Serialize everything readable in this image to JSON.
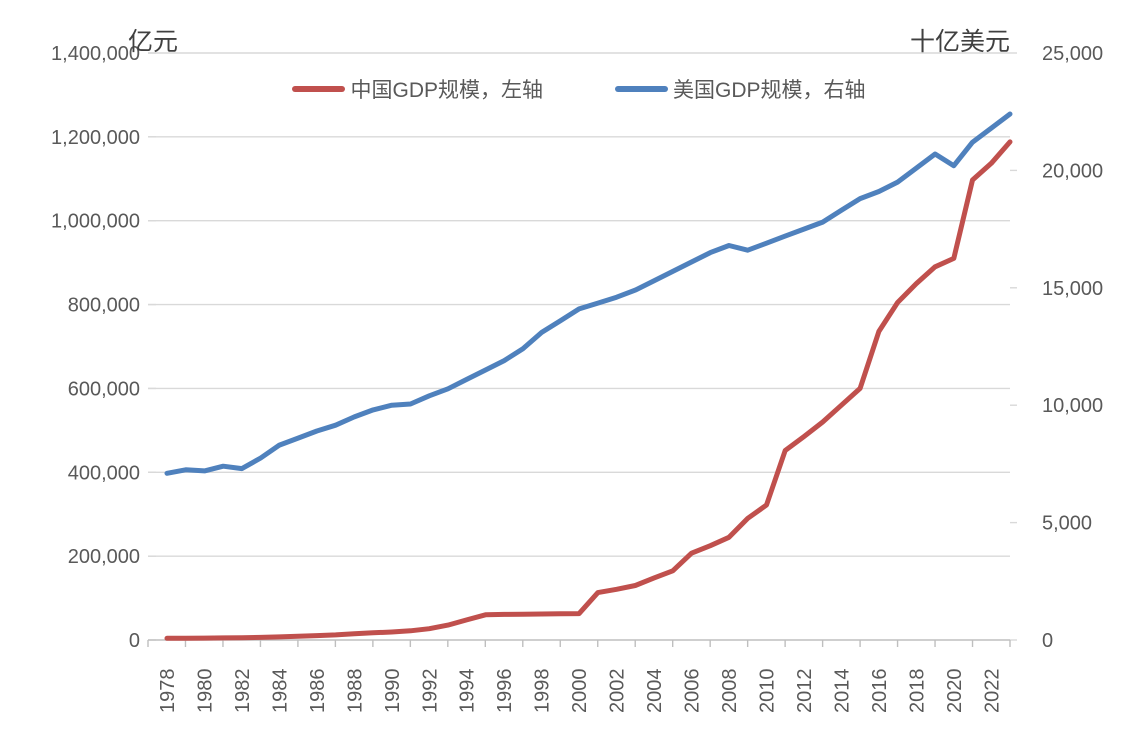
{
  "chart_data": {
    "type": "line",
    "title": "",
    "grid": true,
    "legend_position": "top",
    "colors": {
      "china_line": "#C0504D",
      "us_line": "#4F81BD",
      "gridline": "#D9D9D9",
      "axis_line": "#BFBFBF",
      "tick_text": "#595959",
      "unit_text": "#404040",
      "background": "#FFFFFF"
    },
    "x": [
      1978,
      1979,
      1980,
      1981,
      1982,
      1983,
      1984,
      1985,
      1986,
      1987,
      1988,
      1989,
      1990,
      1991,
      1992,
      1993,
      1994,
      1995,
      1996,
      1997,
      1998,
      1999,
      2000,
      2001,
      2002,
      2003,
      2004,
      2005,
      2006,
      2007,
      2008,
      2009,
      2010,
      2011,
      2012,
      2013,
      2014,
      2015,
      2016,
      2017,
      2018,
      2019,
      2020,
      2021,
      2022,
      2023
    ],
    "x_tick_labels": [
      "1978",
      "1980",
      "1982",
      "1984",
      "1986",
      "1988",
      "1990",
      "1992",
      "1994",
      "1996",
      "1998",
      "2000",
      "2002",
      "2004",
      "2006",
      "2008",
      "2010",
      "2012",
      "2014",
      "2016",
      "2018",
      "2020",
      "2022"
    ],
    "series": [
      {
        "name": "中国GDP规模，左轴",
        "axis": "left",
        "unit": "亿元",
        "color": "#C0504D",
        "values": [
          4000,
          4300,
          4600,
          5000,
          5400,
          6100,
          7300,
          9000,
          10400,
          12200,
          15000,
          17100,
          19000,
          22000,
          27000,
          35500,
          48000,
          60000,
          61000,
          61500,
          62000,
          62500,
          63000,
          113000,
          121000,
          130000,
          148000,
          165000,
          207000,
          225000,
          245000,
          290000,
          322000,
          452000,
          485000,
          520000,
          560000,
          600000,
          736000,
          805000,
          850000,
          890000,
          910000,
          1097000,
          1137000,
          1188000
        ]
      },
      {
        "name": "美国GDP规模，右轴",
        "axis": "right",
        "unit": "十亿美元",
        "color": "#4F81BD",
        "values": [
          7100,
          7250,
          7200,
          7400,
          7300,
          7750,
          8300,
          8600,
          8900,
          9150,
          9500,
          9800,
          10000,
          10050,
          10400,
          10700,
          11100,
          11500,
          11900,
          12400,
          13100,
          13600,
          14100,
          14350,
          14600,
          14900,
          15300,
          15700,
          16100,
          16500,
          16800,
          16600,
          16900,
          17200,
          17500,
          17800,
          18300,
          18800,
          19100,
          19500,
          20100,
          20700,
          20200,
          21200,
          21800,
          22400
        ]
      }
    ],
    "left_axis": {
      "title": "亿元",
      "min": 0,
      "max": 1400000,
      "tick_step": 200000,
      "tick_labels": [
        "0",
        "200,000",
        "400,000",
        "600,000",
        "800,000",
        "1,000,000",
        "1,200,000",
        "1,400,000"
      ]
    },
    "right_axis": {
      "title": "十亿美元",
      "min": 0,
      "max": 25000,
      "tick_step": 5000,
      "tick_labels": [
        "0",
        "5,000",
        "10,000",
        "15,000",
        "20,000",
        "25,000"
      ]
    }
  }
}
